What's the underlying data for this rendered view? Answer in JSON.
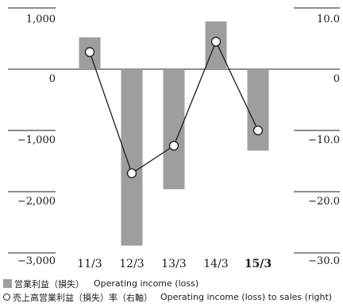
{
  "chart_data": {
    "type": "bar+line",
    "categories": [
      "11/3",
      "12/3",
      "13/3",
      "14/3",
      "15/3"
    ],
    "bold_category": "15/3",
    "series": [
      {
        "name": "営業利益（損失） Operating income (loss)",
        "type": "bar",
        "axis": "left",
        "values": [
          520,
          -2880,
          -1960,
          780,
          -1330
        ]
      },
      {
        "name": "売上高営業利益（損失）率（右軸） Operating income (loss) to sales (right)",
        "type": "line",
        "axis": "right",
        "values": [
          2.8,
          -17.0,
          -12.5,
          4.5,
          -10.0
        ]
      }
    ],
    "left_axis": {
      "ylim": [
        -3000,
        1000
      ],
      "ticks": [
        "1,000",
        "0",
        "−1,000",
        "−2,000",
        "−3,000"
      ]
    },
    "right_axis": {
      "ylim": [
        -30,
        10
      ],
      "ticks": [
        "10.0",
        "0",
        "−10.0",
        "−20.0",
        "−30.0"
      ]
    },
    "colors": {
      "bar": "#9e9e9e",
      "line": "#231815",
      "text": "#231815"
    },
    "legend_placement": "bottom"
  },
  "legend": {
    "bar_jp": "営業利益（損失）",
    "bar_en": "Operating income (loss)",
    "line_jp": "売上高営業利益（損失）率（右軸）",
    "line_en": "Operating income (loss) to sales (right)"
  }
}
